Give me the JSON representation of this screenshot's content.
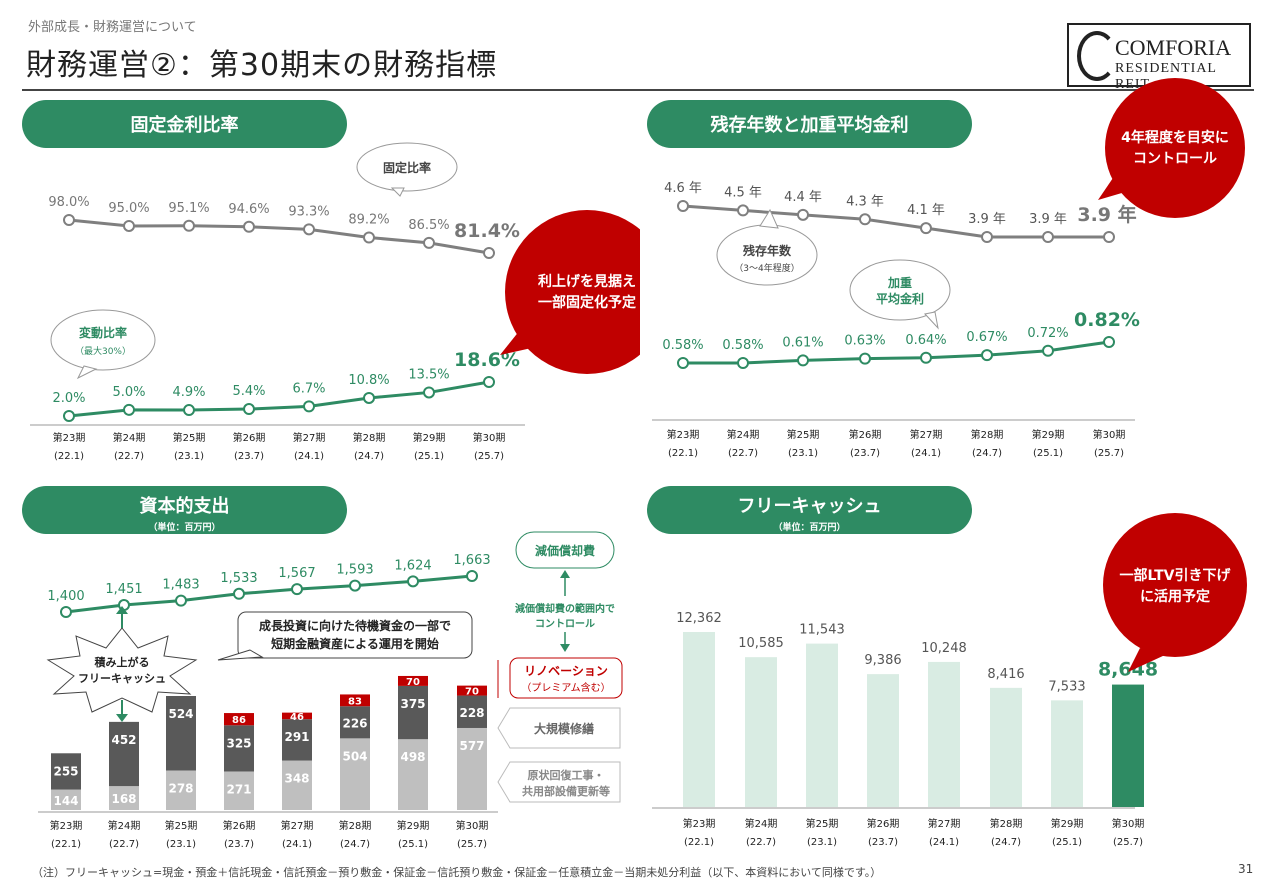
{
  "header": {
    "breadcrumb": "外部成長・財務運営について",
    "title": "財務運営②：第30期末の財務指標",
    "logo_line1": "COMFORIA",
    "logo_line2": "RESIDENTIAL REIT"
  },
  "panels": {
    "fixed_rate": {
      "title": "固定金利比率"
    },
    "remaining": {
      "title": "残存年数と加重平均金利"
    },
    "capex": {
      "title": "資本的支出",
      "unit": "（単位：百万円）"
    },
    "fcf": {
      "title": "フリーキャッシュ",
      "unit": "（単位：百万円）"
    }
  },
  "periods": [
    "第23期",
    "第24期",
    "第25期",
    "第26期",
    "第27期",
    "第28期",
    "第29期",
    "第30期"
  ],
  "period_dates": [
    "(22.1)",
    "(22.7)",
    "(23.1)",
    "(23.7)",
    "(24.1)",
    "(24.7)",
    "(25.1)",
    "(25.7)"
  ],
  "chart_data": [
    {
      "type": "line",
      "title": "固定金利比率",
      "categories": [
        "第23期",
        "第24期",
        "第25期",
        "第26期",
        "第27期",
        "第28期",
        "第29期",
        "第30期"
      ],
      "series": [
        {
          "name": "固定比率",
          "values": [
            98.0,
            95.0,
            95.1,
            94.6,
            93.3,
            89.2,
            86.5,
            81.4
          ],
          "labels": [
            "98.0%",
            "95.0%",
            "95.1%",
            "94.6%",
            "93.3%",
            "89.2%",
            "86.5%",
            "81.4%"
          ]
        },
        {
          "name": "変動比率",
          "values": [
            2.0,
            5.0,
            4.9,
            5.4,
            6.7,
            10.8,
            13.5,
            18.6
          ],
          "labels": [
            "2.0%",
            "5.0%",
            "4.9%",
            "5.4%",
            "6.7%",
            "10.8%",
            "13.5%",
            "18.6%"
          ]
        }
      ]
    },
    {
      "type": "line",
      "title": "残存年数と加重平均金利",
      "categories": [
        "第23期",
        "第24期",
        "第25期",
        "第26期",
        "第27期",
        "第28期",
        "第29期",
        "第30期"
      ],
      "series": [
        {
          "name": "残存年数",
          "values": [
            4.6,
            4.5,
            4.4,
            4.3,
            4.1,
            3.9,
            3.9,
            3.9
          ],
          "labels": [
            "4.6 年",
            "4.5 年",
            "4.4 年",
            "4.3 年",
            "4.1 年",
            "3.9 年",
            "3.9 年",
            "3.9 年"
          ]
        },
        {
          "name": "加重平均金利",
          "values": [
            0.58,
            0.58,
            0.61,
            0.63,
            0.64,
            0.67,
            0.72,
            0.82
          ],
          "labels": [
            "0.58%",
            "0.58%",
            "0.61%",
            "0.63%",
            "0.64%",
            "0.67%",
            "0.72%",
            "0.82%"
          ]
        }
      ]
    },
    {
      "type": "bar",
      "title": "資本的支出",
      "unit": "（単位：百万円）",
      "categories": [
        "第23期",
        "第24期",
        "第25期",
        "第26期",
        "第27期",
        "第28期",
        "第29期",
        "第30期"
      ],
      "series": [
        {
          "name": "原状回復工事・共用部設備更新等",
          "values": [
            144,
            168,
            278,
            271,
            348,
            504,
            498,
            577
          ]
        },
        {
          "name": "大規模修繕",
          "values": [
            255,
            452,
            524,
            325,
            291,
            226,
            375,
            228
          ]
        },
        {
          "name": "リノベーション（プレミアム含む）",
          "values": [
            0,
            0,
            0,
            86,
            46,
            83,
            70,
            70
          ]
        }
      ],
      "line": {
        "name": "減価償却費",
        "values": [
          1400,
          1451,
          1483,
          1533,
          1567,
          1593,
          1624,
          1663
        ],
        "labels": [
          "1,400",
          "1,451",
          "1,483",
          "1,533",
          "1,567",
          "1,593",
          "1,624",
          "1,663"
        ]
      }
    },
    {
      "type": "bar",
      "title": "フリーキャッシュ",
      "unit": "（単位：百万円）",
      "categories": [
        "第23期",
        "第24期",
        "第25期",
        "第26期",
        "第27期",
        "第28期",
        "第29期",
        "第30期"
      ],
      "values": [
        12362,
        10585,
        11543,
        9386,
        10248,
        8416,
        7533,
        8648
      ],
      "labels": [
        "12,362",
        "10,585",
        "11,543",
        "9,386",
        "10,248",
        "8,416",
        "7,533",
        "8,648"
      ]
    }
  ],
  "callouts": {
    "fixed_ratio": "固定比率",
    "variable_ratio_1": "変動比率",
    "variable_ratio_2": "（最大30%）",
    "rate_hike_1": "利上げを見据え",
    "rate_hike_2": "一部固定化予定",
    "years_1": "4年程度を目安に",
    "years_2": "コントロール",
    "remaining_1": "残存年数",
    "remaining_2": "（3～4年程度）",
    "weighted_1": "加重",
    "weighted_2": "平均金利",
    "depreciation": "減価償却費",
    "depr_control_1": "減価償却費の範囲内で",
    "depr_control_2": "コントロール",
    "short_term_1": "成長投資に向けた待機資金の一部で",
    "short_term_2": "短期金融資産による運用を開始",
    "accumulating_1": "積み上がる",
    "accumulating_2": "フリーキャッシュ",
    "legend_renovation_1": "リノベーション",
    "legend_renovation_2": "（プレミアム含む）",
    "legend_large_repair": "大規模修繕",
    "legend_restore_1": "原状回復工事・",
    "legend_restore_2": "共用部設備更新等",
    "ltv_1": "一部LTV引き下げ",
    "ltv_2": "に活用予定"
  },
  "colors": {
    "green": "#2e8b63",
    "gray_line": "#7f7f7f",
    "red": "#c00000",
    "dark_bar": "#595959",
    "light_bar": "#bfbfbf",
    "fcf_bar": "#d9ece3",
    "fcf_highlight": "#2e8b63"
  },
  "footer": {
    "note": "（注）フリーキャッシュ=現金・預金＋信託現金・信託預金－預り敷金・保証金－信託預り敷金・保証金－任意積立金－当期未処分利益（以下、本資料において同様です。）",
    "page": "31"
  }
}
